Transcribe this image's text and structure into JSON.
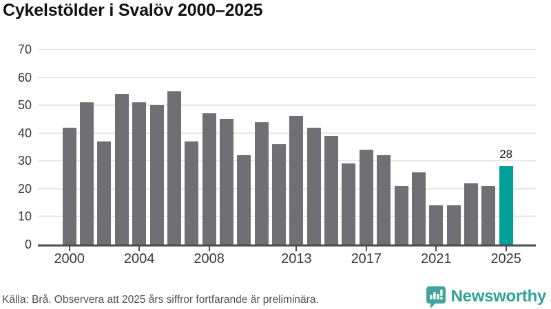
{
  "title": "Cykelstölder i Svalöv 2000–2025",
  "footer": {
    "source_note": "Källa: Brå. Observera att 2025 års siffror fortfarande är preliminära.",
    "brand": "Newsworthy",
    "brand_icon": "newsworthy-speech-bubble-bar-chart-icon"
  },
  "colors": {
    "bar": "#6f6f74",
    "highlight": "#00a099",
    "grid": "#e8e8e8",
    "axis": "#4d4d4d",
    "brand": "#2fa29a",
    "brand_icon": "#43a49d"
  },
  "chart_data": {
    "type": "bar",
    "title": "Cykelstölder i Svalöv 2000–2025",
    "categories": [
      2000,
      2001,
      2002,
      2003,
      2004,
      2005,
      2006,
      2007,
      2008,
      2009,
      2010,
      2011,
      2012,
      2013,
      2014,
      2015,
      2016,
      2017,
      2018,
      2019,
      2020,
      2021,
      2022,
      2023,
      2024,
      2025
    ],
    "values": [
      42,
      51,
      37,
      54,
      51,
      50,
      55,
      37,
      47,
      45,
      32,
      44,
      36,
      46,
      42,
      39,
      29,
      34,
      32,
      21,
      26,
      14,
      14,
      22,
      21,
      28
    ],
    "highlight_index": 25,
    "highlight_label": "28",
    "xlabel": "",
    "ylabel": "",
    "ylim": [
      0,
      70
    ],
    "yticks": [
      0,
      10,
      20,
      30,
      40,
      50,
      60,
      70
    ],
    "xticks": [
      2000,
      2004,
      2008,
      2013,
      2017,
      2021,
      2025
    ],
    "grid": "horizontal-only",
    "legend": "none",
    "highlight_note": "2025 bar highlighted in teal, preliminary figures"
  }
}
